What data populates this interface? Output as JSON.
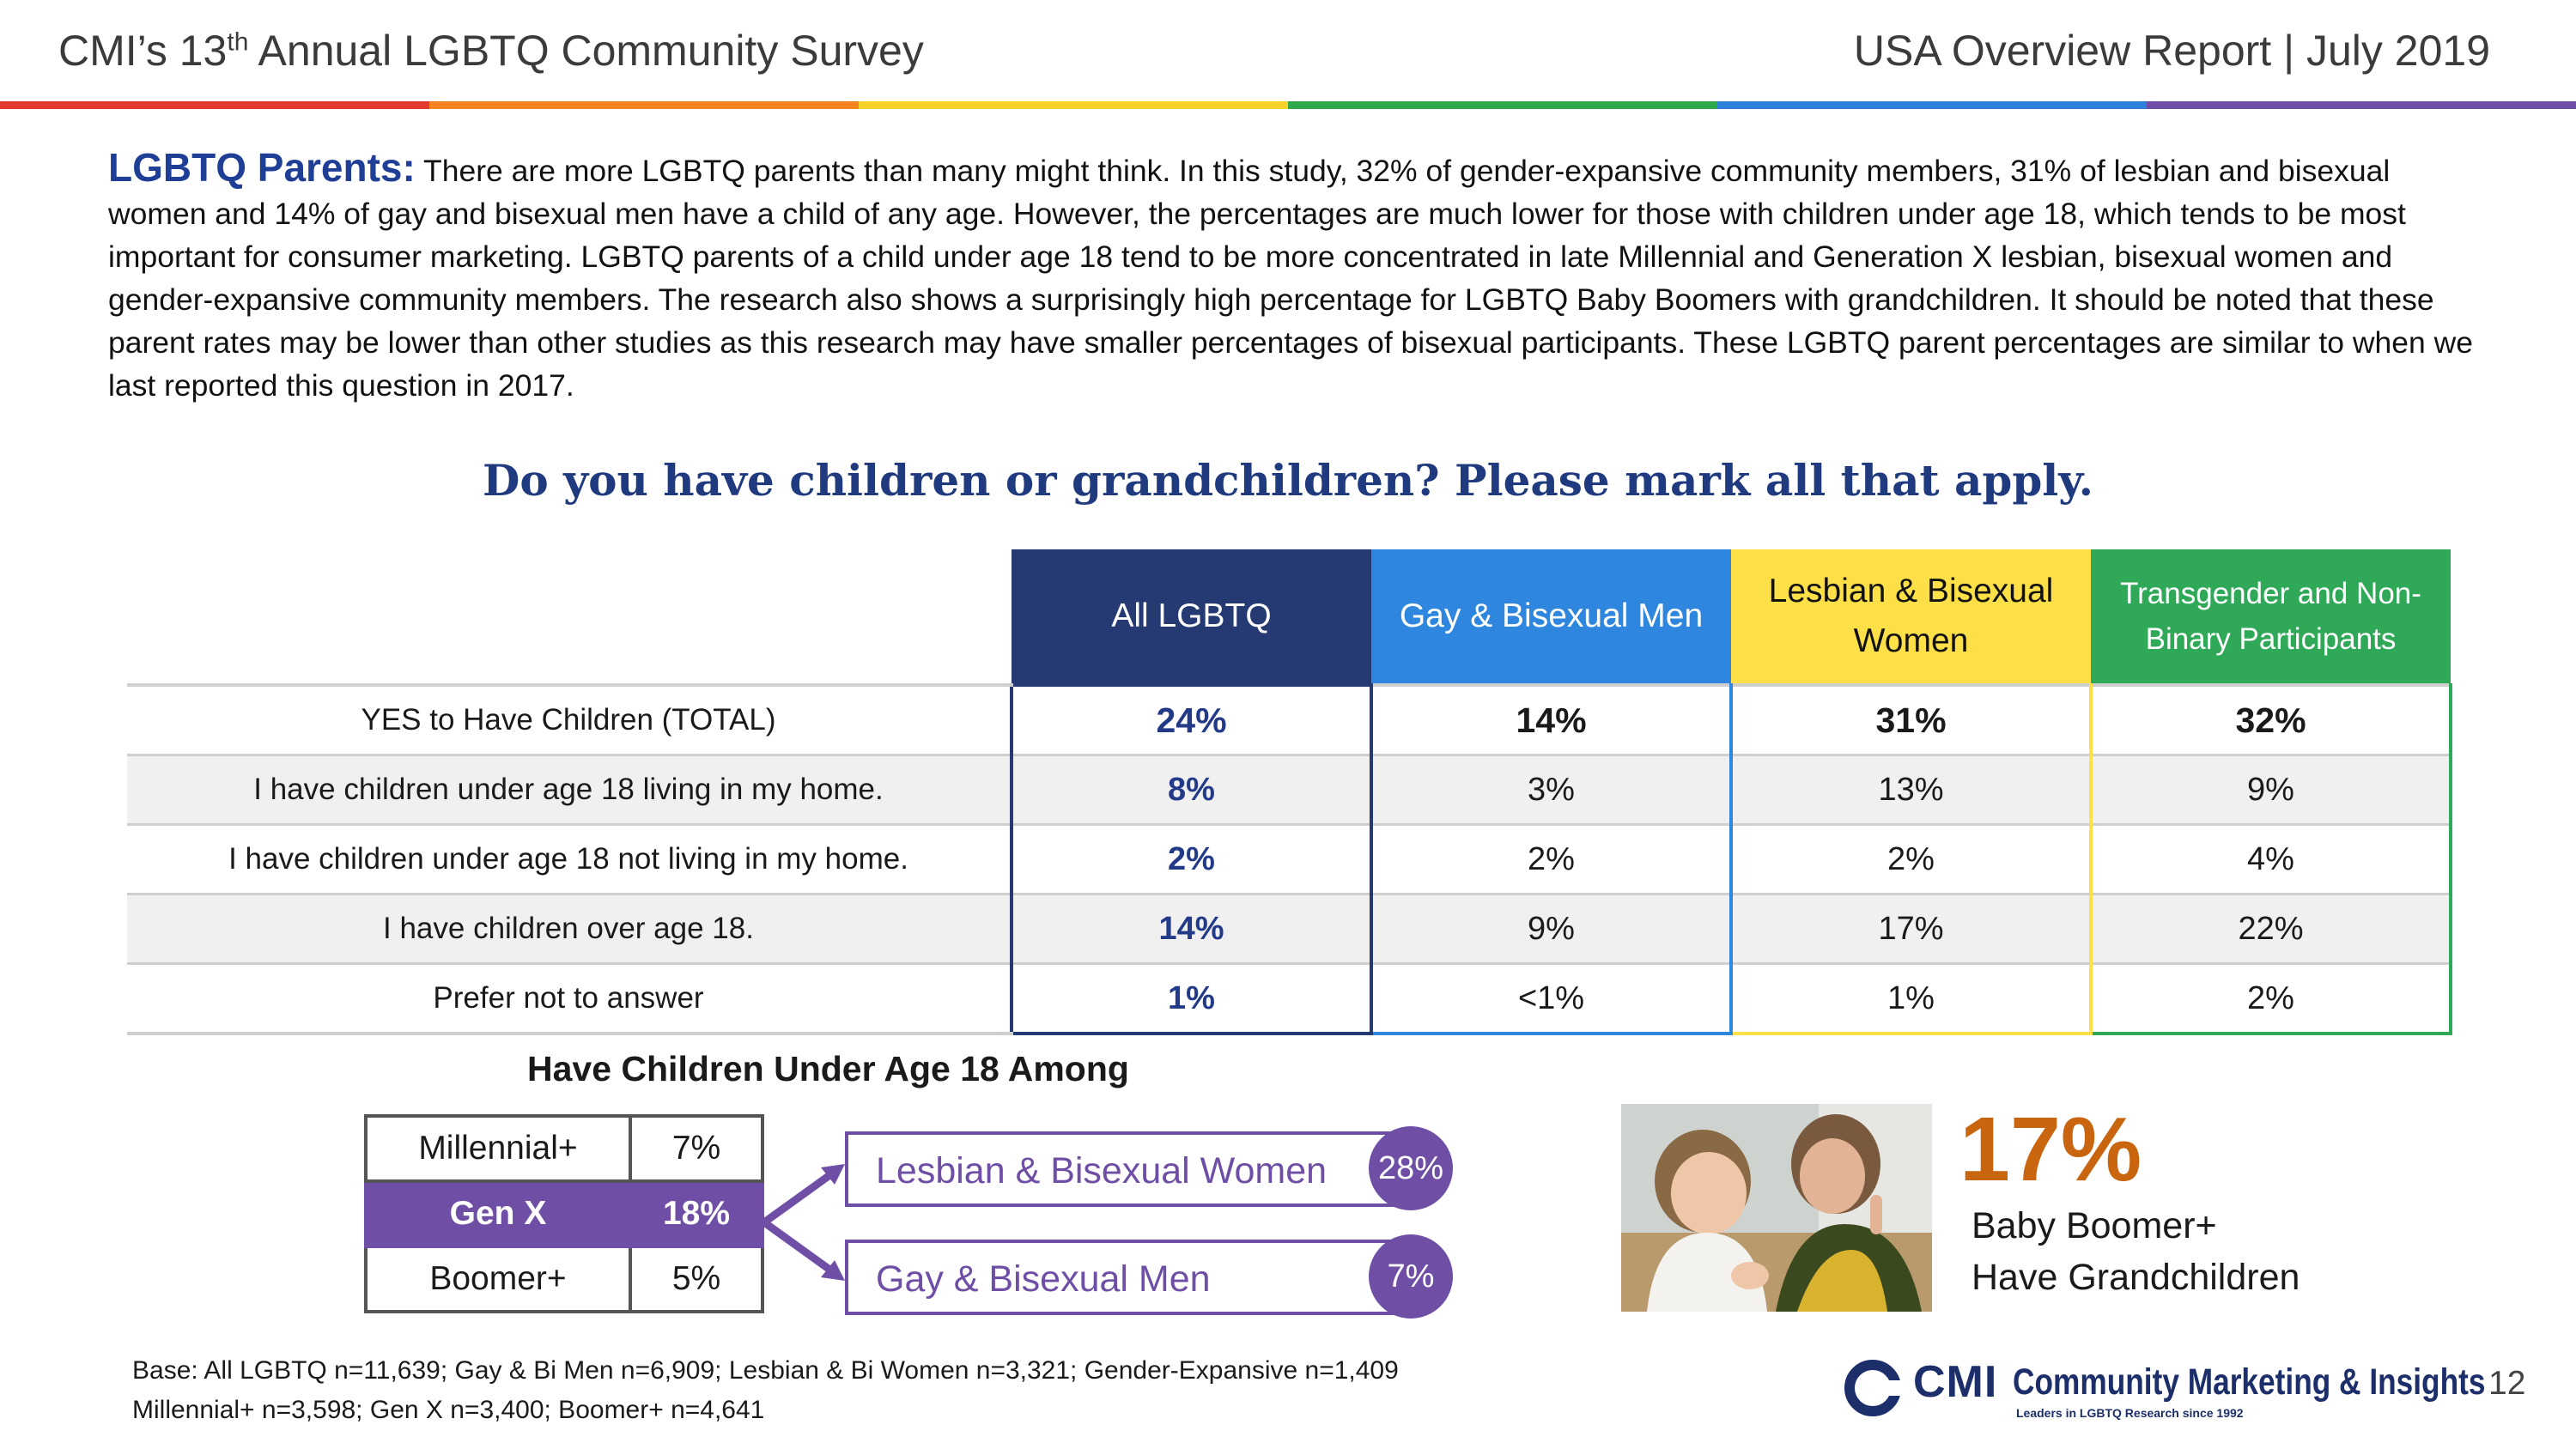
{
  "header": {
    "survey_pre": "CMI’s 13",
    "survey_sup": "th",
    "survey_post": " Annual LGBTQ Community Survey",
    "report": "USA Overview Report | July 2019",
    "rainbow_colors": [
      "#e23a31",
      "#f58420",
      "#f7d22b",
      "#2ea84a",
      "#2f80d9",
      "#6f4fa6"
    ]
  },
  "intro": {
    "lead": "LGBTQ Parents:",
    "text": " There are more LGBTQ parents than many might think. In this study, 32% of gender-expansive community members, 31% of lesbian and bisexual women and 14% of gay and bisexual men have a child of any age. However, the percentages are much lower for those with children under age 18, which tends to be most important for consumer marketing. LGBTQ parents of a child under age 18 tend to be more concentrated in late Millennial and Generation X lesbian, bisexual women and gender-expansive community members. The research also shows a surprisingly high percentage for LGBTQ Baby Boomers with grandchildren. It should be noted that these parent rates may be lower than other studies as this research may have smaller percentages of bisexual participants. These LGBTQ parent percentages are similar to when we last reported this question in 2017."
  },
  "question": "Do you have children or grandchildren?  Please mark all that apply.",
  "table": {
    "columns": [
      "All LGBTQ",
      "Gay & Bisexual Men",
      "Lesbian & Bisexual Women",
      "Transgender and Non-Binary Participants"
    ],
    "rows": [
      {
        "label": "YES to Have Children (TOTAL)",
        "values": [
          "24%",
          "14%",
          "31%",
          "32%"
        ]
      },
      {
        "label": "I have children under age 18 living in my home.",
        "values": [
          "8%",
          "3%",
          "13%",
          "9%"
        ]
      },
      {
        "label": "I have children under age 18 not living in my home.",
        "values": [
          "2%",
          "2%",
          "2%",
          "4%"
        ]
      },
      {
        "label": "I have children over age 18.",
        "values": [
          "14%",
          "9%",
          "17%",
          "22%"
        ]
      },
      {
        "label": "Prefer not to answer",
        "values": [
          "1%",
          "<1%",
          "1%",
          "2%"
        ]
      }
    ]
  },
  "under18": {
    "title": "Have Children Under Age 18 Among",
    "generations": [
      {
        "name": "Millennial+",
        "value": "7%"
      },
      {
        "name": "Gen X",
        "value": "18%"
      },
      {
        "name": "Boomer+",
        "value": "5%"
      }
    ],
    "breakdown": [
      {
        "label": "Lesbian & Bisexual Women",
        "value": "28%"
      },
      {
        "label": "Gay & Bisexual Men",
        "value": "7%"
      }
    ]
  },
  "grandchildren": {
    "value": "17%",
    "line1": "Baby Boomer+",
    "line2": "Have Grandchildren"
  },
  "base": {
    "line1": "Base: All LGBTQ n=11,639; Gay & Bi Men n=6,909; Lesbian & Bi Women n=3,321; Gender-Expansive n=1,409",
    "line2": "Millennial+ n=3,598; Gen X n=3,400; Boomer+ n=4,641"
  },
  "logo": {
    "abbr": "CMI",
    "name": "Community Marketing & Insights",
    "tagline": "Leaders in LGBTQ Research since 1992"
  },
  "page_number": "12"
}
